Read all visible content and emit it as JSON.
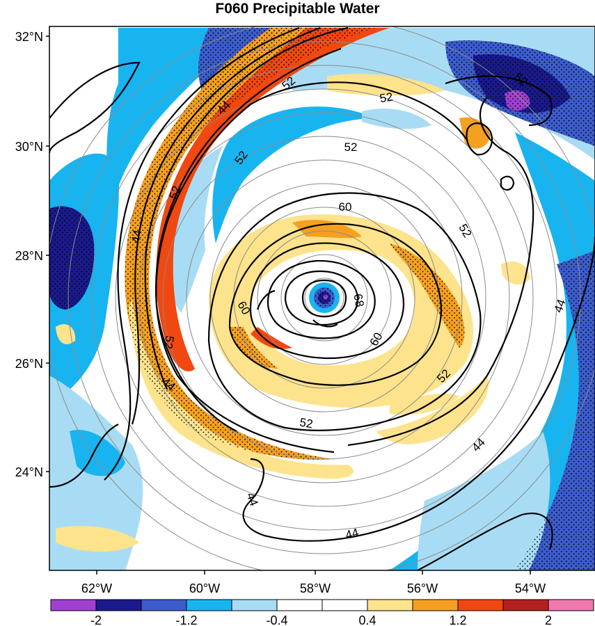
{
  "title": "F060 Precipitable Water",
  "map_data": {
    "lat_labels": [
      "32°N",
      "30°N",
      "28°N",
      "26°N",
      "24°N"
    ],
    "lon_labels": [
      "62°W",
      "60°W",
      "58°W",
      "56°W",
      "54°W"
    ],
    "contour_labels": [
      {
        "text": "52",
        "rot": -40
      },
      {
        "text": "44",
        "rot": -45
      },
      {
        "text": "52",
        "rot": -10
      },
      {
        "text": "52",
        "rot": 0
      },
      {
        "text": "52",
        "rot": -55
      },
      {
        "text": "52",
        "rot": -70
      },
      {
        "text": "52",
        "rot": -80
      },
      {
        "text": "44",
        "rot": -80
      },
      {
        "text": "60",
        "rot": 0
      },
      {
        "text": "68",
        "rot": -80
      },
      {
        "text": "60",
        "rot": 60
      },
      {
        "text": "60",
        "rot": -60
      },
      {
        "text": "52",
        "rot": 60
      },
      {
        "text": "52",
        "rot": -45
      },
      {
        "text": "52",
        "rot": 40
      },
      {
        "text": "44",
        "rot": 40
      },
      {
        "text": "44",
        "rot": 0
      },
      {
        "text": "44",
        "rot": 70
      },
      {
        "text": "44",
        "rot": -15
      },
      {
        "text": "44",
        "rot": -70
      },
      {
        "text": "52",
        "rot": 10
      }
    ]
  },
  "colorbar": {
    "colors": [
      "#a040d0",
      "#1a1a8c",
      "#3c5ccc",
      "#18b4f0",
      "#a8dcf4",
      "#ffffff",
      "#ffffff",
      "#fde38c",
      "#f5a020",
      "#f04810",
      "#b42020",
      "#f078b0"
    ],
    "tick_labels": [
      "-2",
      "-1.2",
      "-0.4",
      "0.4",
      "1.2",
      "2"
    ]
  }
}
